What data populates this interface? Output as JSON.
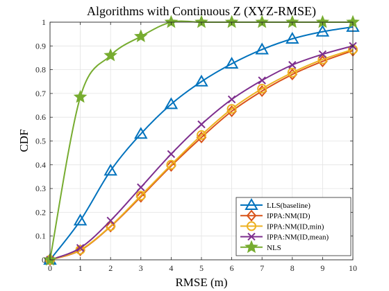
{
  "chart_data": {
    "type": "line",
    "title": "Algorithms with Continuous Z (XYZ-RMSE)",
    "xlabel": "RMSE (m)",
    "ylabel": "CDF",
    "xlim": [
      0,
      10
    ],
    "ylim": [
      0,
      1
    ],
    "x_ticks": [
      "0",
      "1",
      "2",
      "3",
      "4",
      "5",
      "6",
      "7",
      "8",
      "9",
      "10"
    ],
    "y_ticks": [
      "0",
      "0.1",
      "0.2",
      "0.3",
      "0.4",
      "0.5",
      "0.6",
      "0.7",
      "0.8",
      "0.9",
      "1"
    ],
    "grid": true,
    "legend_position": "bottom-right",
    "x": [
      0,
      1,
      2,
      3,
      4,
      5,
      6,
      7,
      8,
      9,
      10
    ],
    "series": [
      {
        "name": "LLS(baseline)",
        "color": "#0072BD",
        "marker": "triangle",
        "values": [
          0.0,
          0.165,
          0.375,
          0.53,
          0.655,
          0.75,
          0.825,
          0.885,
          0.93,
          0.96,
          0.98
        ]
      },
      {
        "name": "IPPA:NM(ID)",
        "color": "#D95319",
        "marker": "diamond",
        "values": [
          0.0,
          0.04,
          0.14,
          0.265,
          0.395,
          0.515,
          0.625,
          0.71,
          0.78,
          0.835,
          0.88
        ]
      },
      {
        "name": "IPPA:NM(ID,min)",
        "color": "#EDB120",
        "marker": "circle",
        "values": [
          0.0,
          0.042,
          0.142,
          0.27,
          0.4,
          0.525,
          0.635,
          0.72,
          0.788,
          0.843,
          0.885
        ]
      },
      {
        "name": "IPPA:NM(ID,mean)",
        "color": "#7E2F8E",
        "marker": "x",
        "values": [
          0.0,
          0.05,
          0.165,
          0.305,
          0.445,
          0.57,
          0.675,
          0.755,
          0.82,
          0.865,
          0.9
        ]
      },
      {
        "name": "NLS",
        "color": "#77AC30",
        "marker": "star",
        "values": [
          0.0,
          0.685,
          0.86,
          0.94,
          1.0,
          1.0,
          1.0,
          1.0,
          1.0,
          1.0,
          1.0
        ]
      }
    ]
  }
}
